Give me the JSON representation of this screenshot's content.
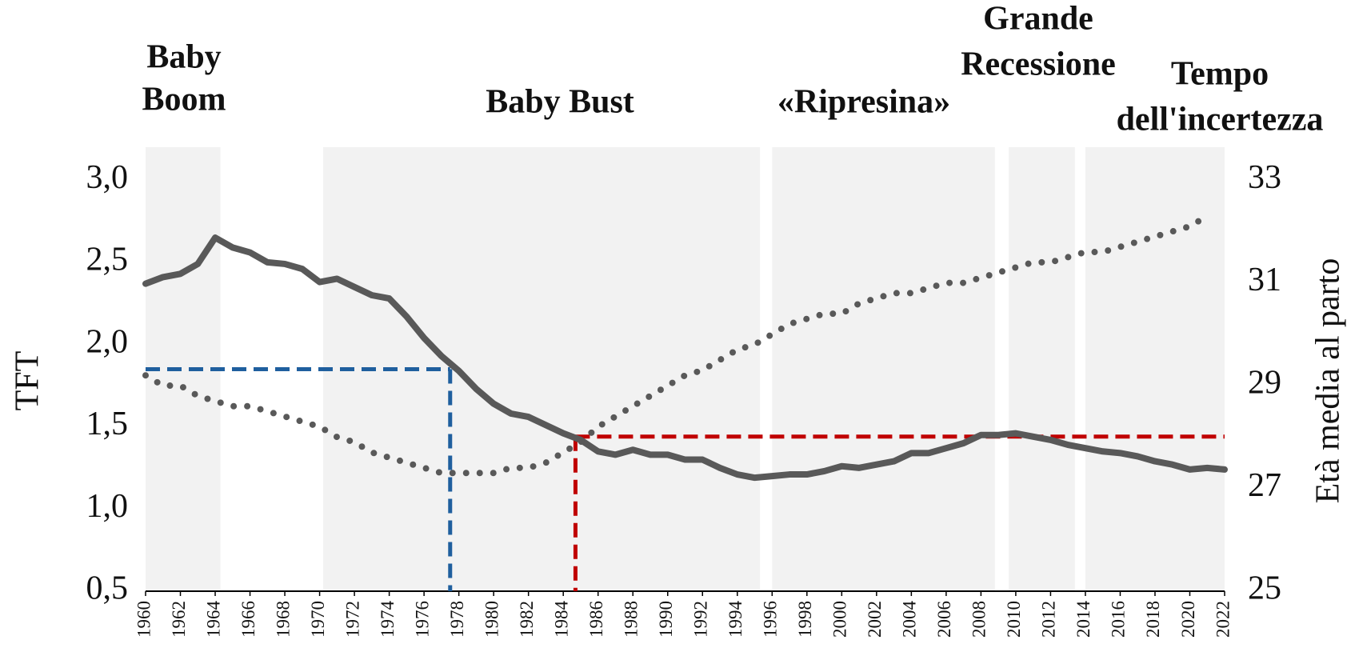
{
  "chart_data": {
    "type": "line",
    "ylabel": "TFT",
    "y2label": "Età media al parto",
    "x": [
      1960,
      1961,
      1962,
      1963,
      1964,
      1965,
      1966,
      1967,
      1968,
      1969,
      1970,
      1971,
      1972,
      1973,
      1974,
      1975,
      1976,
      1977,
      1978,
      1979,
      1980,
      1981,
      1982,
      1983,
      1984,
      1985,
      1986,
      1987,
      1988,
      1989,
      1990,
      1991,
      1992,
      1993,
      1994,
      1995,
      1996,
      1997,
      1998,
      1999,
      2000,
      2001,
      2002,
      2003,
      2004,
      2005,
      2006,
      2007,
      2008,
      2009,
      2010,
      2011,
      2012,
      2013,
      2014,
      2015,
      2016,
      2017,
      2018,
      2019,
      2020,
      2021,
      2022
    ],
    "series": [
      {
        "name": "TFT",
        "color": "#595959",
        "style": "solid",
        "values": [
          2.37,
          2.41,
          2.43,
          2.49,
          2.65,
          2.59,
          2.56,
          2.5,
          2.49,
          2.46,
          2.38,
          2.4,
          2.35,
          2.3,
          2.28,
          2.17,
          2.04,
          1.93,
          1.84,
          1.73,
          1.64,
          1.58,
          1.56,
          1.51,
          1.46,
          1.42,
          1.35,
          1.33,
          1.36,
          1.33,
          1.33,
          1.3,
          1.3,
          1.25,
          1.21,
          1.19,
          1.2,
          1.21,
          1.21,
          1.23,
          1.26,
          1.25,
          1.27,
          1.29,
          1.34,
          1.34,
          1.37,
          1.4,
          1.45,
          1.45,
          1.46,
          1.44,
          1.42,
          1.39,
          1.37,
          1.35,
          1.34,
          1.32,
          1.29,
          1.27,
          1.24,
          1.25,
          1.24
        ]
      },
      {
        "name": "Età media al parto",
        "color": "#595959",
        "style": "dotted",
        "axis": "y2",
        "values": [
          29.2,
          29.0,
          29.0,
          28.8,
          28.7,
          28.6,
          28.6,
          28.5,
          28.4,
          28.3,
          28.2,
          28.0,
          27.9,
          27.7,
          27.6,
          27.5,
          27.4,
          27.3,
          27.3,
          27.3,
          27.3,
          27.4,
          27.4,
          27.5,
          27.7,
          27.9,
          28.2,
          28.4,
          28.6,
          28.8,
          29.0,
          29.2,
          29.3,
          29.5,
          29.7,
          29.8,
          30.0,
          30.2,
          30.3,
          30.4,
          30.4,
          30.6,
          30.7,
          30.8,
          30.8,
          30.9,
          31.0,
          31.0,
          31.1,
          31.2,
          31.3,
          31.4,
          31.4,
          31.5,
          31.6,
          31.6,
          31.7,
          31.8,
          31.9,
          32.0,
          32.1,
          32.3,
          null
        ]
      }
    ],
    "xlim": [
      1960,
      2022
    ],
    "xticks": [
      1960,
      1962,
      1964,
      1966,
      1968,
      1970,
      1972,
      1974,
      1976,
      1978,
      1980,
      1982,
      1984,
      1986,
      1988,
      1990,
      1992,
      1994,
      1996,
      1998,
      2000,
      2002,
      2004,
      2006,
      2008,
      2010,
      2012,
      2014,
      2016,
      2018,
      2020,
      2022
    ],
    "ylim": [
      0.5,
      3.2
    ],
    "yticks": [
      {
        "value": 0.5,
        "label": "0,5"
      },
      {
        "value": 1,
        "label": "1,0"
      },
      {
        "value": 1.5,
        "label": "1,5"
      },
      {
        "value": 2,
        "label": "2,0"
      },
      {
        "value": 2.5,
        "label": "2,5"
      },
      {
        "value": 3,
        "label": "3,0"
      }
    ],
    "y2lim": [
      25,
      33.64
    ],
    "y2ticks": [
      25,
      27,
      29,
      31,
      33
    ],
    "periods": [
      {
        "label": [
          "Baby",
          "Boom"
        ],
        "x": [
          1960,
          1964.3
        ]
      },
      {
        "label": [
          "Baby Bust"
        ],
        "x": [
          1970.2,
          1995.3
        ]
      },
      {
        "label": [
          "«Ripresina»"
        ],
        "x": [
          1996,
          2008.8
        ]
      },
      {
        "label": [
          "Grande",
          "Recessione"
        ],
        "x": [
          2009.6,
          2013.4
        ]
      },
      {
        "label": [
          "Tempo",
          "dell'incertezza"
        ],
        "x": [
          2014,
          2022
        ]
      }
    ],
    "period_color": "#f2f2f2",
    "reference_lines": [
      {
        "color": "#1f5f9e",
        "x": [
          1960,
          1977.5
        ],
        "y": 1.85,
        "drop_x": 1977.5
      },
      {
        "color": "#c00000",
        "x": [
          1984.7,
          2022
        ],
        "y": 1.44,
        "drop_x": 1984.7
      }
    ]
  }
}
